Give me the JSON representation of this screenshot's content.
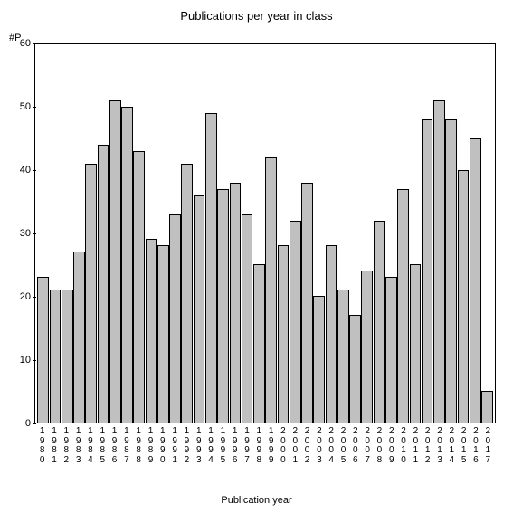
{
  "chart": {
    "type": "bar",
    "title": "Publications per year in class",
    "title_fontsize": 13,
    "y_axis_label": "#P",
    "x_axis_label": "Publication year",
    "label_fontsize": 11,
    "background_color": "#ffffff",
    "bar_fill_color": "#c0c0c0",
    "bar_border_color": "#000000",
    "axis_color": "#000000",
    "text_color": "#000000",
    "ylim": [
      0,
      60
    ],
    "ytick_step": 10,
    "yticks": [
      0,
      10,
      20,
      30,
      40,
      50,
      60
    ],
    "categories": [
      "1980",
      "1981",
      "1982",
      "1983",
      "1984",
      "1985",
      "1986",
      "1987",
      "1988",
      "1989",
      "1990",
      "1991",
      "1992",
      "1993",
      "1994",
      "1995",
      "1996",
      "1997",
      "1998",
      "1999",
      "2000",
      "2001",
      "2002",
      "2003",
      "2004",
      "2005",
      "2006",
      "2007",
      "2008",
      "2009",
      "2010",
      "2011",
      "2012",
      "2013",
      "2014",
      "2015",
      "2016",
      "2017"
    ],
    "values": [
      23,
      21,
      21,
      27,
      41,
      44,
      51,
      50,
      43,
      29,
      28,
      33,
      41,
      36,
      49,
      37,
      38,
      33,
      25,
      42,
      28,
      32,
      38,
      20,
      28,
      21,
      17,
      24,
      32,
      23,
      37,
      25,
      48,
      51,
      48,
      40,
      45,
      5
    ],
    "bar_width": 1.0,
    "tick_fontsize": 11,
    "xtick_fontsize": 10
  }
}
